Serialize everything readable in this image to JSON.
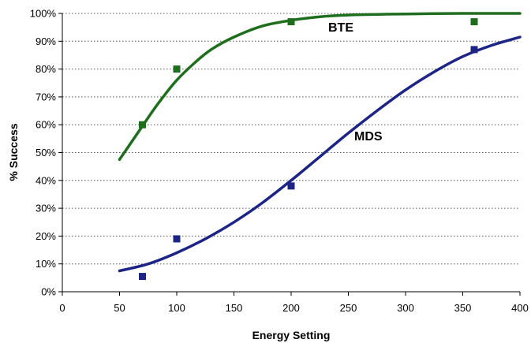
{
  "chart_data": {
    "type": "scatter",
    "title": "",
    "xlabel": "Energy  Setting",
    "ylabel": "% Success",
    "xlim": [
      0,
      400
    ],
    "ylim": [
      0,
      100
    ],
    "xticks": [
      0,
      50,
      100,
      150,
      200,
      250,
      300,
      350,
      400
    ],
    "yticks": [
      0,
      10,
      20,
      30,
      40,
      50,
      60,
      70,
      80,
      90,
      100
    ],
    "ytick_suffix": "%",
    "grid": "horizontal-dotted",
    "series": [
      {
        "name": "BTE",
        "color": "#1e6e1e",
        "points": [
          [
            70,
            60
          ],
          [
            100,
            80
          ],
          [
            200,
            97
          ],
          [
            360,
            97
          ]
        ],
        "fit": [
          [
            50,
            47.5
          ],
          [
            60,
            53.5
          ],
          [
            70,
            59.5
          ],
          [
            80,
            65.5
          ],
          [
            90,
            71
          ],
          [
            100,
            76
          ],
          [
            115,
            82
          ],
          [
            130,
            87
          ],
          [
            150,
            91.5
          ],
          [
            175,
            95.5
          ],
          [
            200,
            97.5
          ],
          [
            225,
            98.8
          ],
          [
            250,
            99.4
          ],
          [
            300,
            99.8
          ],
          [
            350,
            100
          ],
          [
            400,
            100
          ]
        ]
      },
      {
        "name": "MDS",
        "color": "#1c2486",
        "points": [
          [
            70,
            5.5
          ],
          [
            100,
            19
          ],
          [
            200,
            38
          ],
          [
            360,
            87
          ]
        ],
        "fit": [
          [
            50,
            7.5
          ],
          [
            75,
            10
          ],
          [
            100,
            14
          ],
          [
            125,
            19
          ],
          [
            150,
            25
          ],
          [
            175,
            32
          ],
          [
            200,
            40
          ],
          [
            225,
            48.5
          ],
          [
            250,
            57
          ],
          [
            275,
            65
          ],
          [
            300,
            72.5
          ],
          [
            325,
            79
          ],
          [
            350,
            84.5
          ],
          [
            375,
            88.5
          ],
          [
            400,
            91.5
          ]
        ]
      }
    ]
  }
}
